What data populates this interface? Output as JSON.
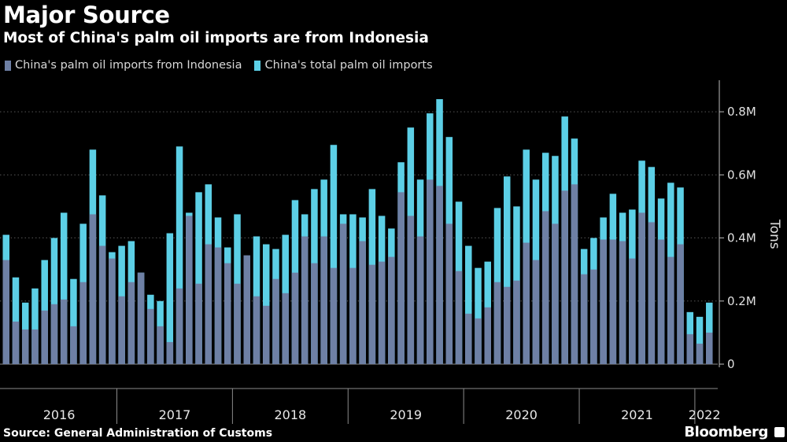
{
  "title": "Major Source",
  "subtitle": "Most of China's palm oil imports are from Indonesia",
  "source": "Source: General Administration of Customs",
  "brand": "Bloomberg",
  "colors": {
    "background": "#000000",
    "indonesia": "#6e80a5",
    "total": "#5ccfe6",
    "grid": "#555555"
  },
  "chart_data": {
    "type": "bar",
    "stacking": "overlay",
    "ylabel": "Tons",
    "ylim": [
      0,
      900000
    ],
    "yticks": [
      0,
      200000,
      400000,
      600000,
      800000
    ],
    "ytick_labels": [
      "0",
      "0.2M",
      "0.4M",
      "0.6M",
      "0.8M"
    ],
    "grid": true,
    "legend": "top-left",
    "year_labels": [
      {
        "year": "2016",
        "start_month": 0
      },
      {
        "year": "2017",
        "start_month": 12
      },
      {
        "year": "2018",
        "start_month": 24
      },
      {
        "year": "2019",
        "start_month": 36
      },
      {
        "year": "2020",
        "start_month": 48
      },
      {
        "year": "2021",
        "start_month": 60
      },
      {
        "year": "2022",
        "start_month": 72
      }
    ],
    "series": [
      {
        "name": "China's palm oil imports from Indonesia",
        "values": [
          330000,
          135000,
          110000,
          110000,
          170000,
          190000,
          205000,
          120000,
          260000,
          475000,
          375000,
          335000,
          215000,
          260000,
          290000,
          175000,
          120000,
          70000,
          240000,
          470000,
          255000,
          380000,
          370000,
          320000,
          255000,
          345000,
          215000,
          185000,
          270000,
          225000,
          290000,
          405000,
          320000,
          405000,
          305000,
          445000,
          305000,
          390000,
          315000,
          325000,
          340000,
          545000,
          470000,
          405000,
          585000,
          565000,
          445000,
          295000,
          160000,
          145000,
          180000,
          260000,
          245000,
          265000,
          385000,
          330000,
          485000,
          445000,
          550000,
          570000,
          285000,
          300000,
          395000,
          395000,
          390000,
          335000,
          480000,
          450000,
          395000,
          340000,
          380000,
          95000,
          65000,
          100000
        ],
        "color": "#6e80a5"
      },
      {
        "name": "China's total palm oil imports",
        "values": [
          410000,
          275000,
          195000,
          240000,
          330000,
          400000,
          480000,
          270000,
          445000,
          680000,
          535000,
          355000,
          375000,
          390000,
          290000,
          220000,
          200000,
          415000,
          690000,
          480000,
          545000,
          570000,
          465000,
          370000,
          475000,
          310000,
          405000,
          380000,
          365000,
          410000,
          520000,
          475000,
          555000,
          585000,
          695000,
          475000,
          475000,
          465000,
          555000,
          470000,
          430000,
          640000,
          750000,
          585000,
          795000,
          840000,
          720000,
          515000,
          375000,
          305000,
          325000,
          495000,
          595000,
          500000,
          680000,
          585000,
          670000,
          660000,
          785000,
          715000,
          365000,
          400000,
          465000,
          540000,
          480000,
          490000,
          645000,
          625000,
          525000,
          575000,
          560000,
          165000,
          150000,
          195000
        ],
        "color": "#5ccfe6"
      }
    ]
  }
}
